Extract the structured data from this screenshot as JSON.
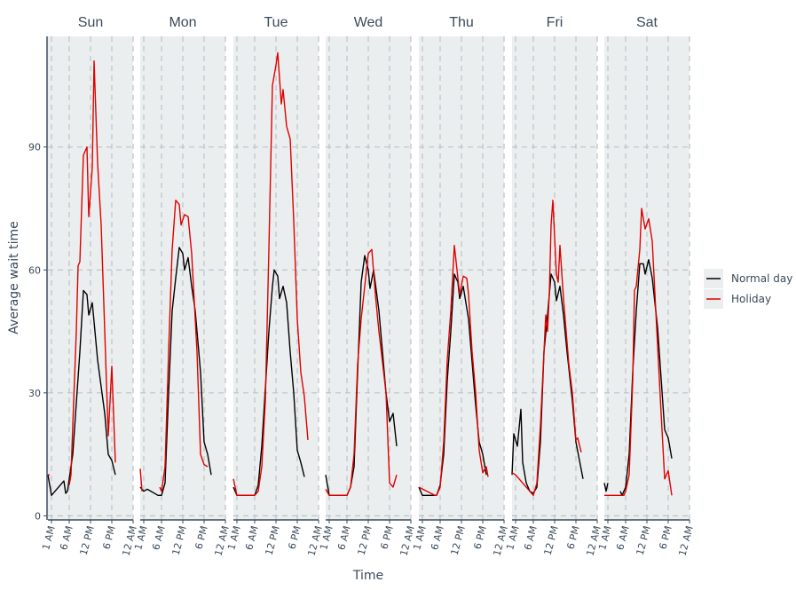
{
  "chart_data": {
    "type": "line",
    "layout": "faceted",
    "xlabel": "Time",
    "ylabel": "Average wait time",
    "x_ticks": [
      {
        "hour": 1,
        "label": "1 AM"
      },
      {
        "hour": 6,
        "label": "6 AM"
      },
      {
        "hour": 12,
        "label": "12 PM"
      },
      {
        "hour": 18,
        "label": "6 PM"
      },
      {
        "hour": 24,
        "label": "12 AM"
      }
    ],
    "xlim": [
      0,
      24
    ],
    "y_ticks": [
      0,
      30,
      60,
      90
    ],
    "ylim": [
      -1,
      117
    ],
    "grid": true,
    "legend_position": "right",
    "legend": [
      {
        "name": "Normal day",
        "color": "#000000"
      },
      {
        "name": "Holiday",
        "color": "#e00000"
      }
    ],
    "facets": [
      {
        "label": "Sun",
        "normal": [
          [
            0,
            10
          ],
          [
            1,
            5
          ],
          [
            4.5,
            8.5
          ],
          [
            5,
            5.5
          ],
          [
            5.5,
            6
          ],
          [
            7,
            15
          ],
          [
            9,
            40
          ],
          [
            10,
            55
          ],
          [
            11,
            54
          ],
          [
            11.5,
            49
          ],
          [
            12.5,
            52
          ],
          [
            14,
            38
          ],
          [
            16,
            25
          ],
          [
            17,
            15
          ],
          [
            18,
            13.5
          ],
          [
            19,
            10
          ]
        ],
        "holiday": [
          [
            0,
            10
          ],
          [
            0.5,
            10
          ],
          [
            null,
            null
          ],
          [
            6,
            7.5
          ],
          [
            6.5,
            10
          ],
          [
            7,
            22
          ],
          [
            8,
            45
          ],
          [
            8.5,
            61
          ],
          [
            9,
            62
          ],
          [
            10,
            88
          ],
          [
            11,
            90
          ],
          [
            11.5,
            73
          ],
          [
            12.5,
            85
          ],
          [
            13,
            111
          ],
          [
            14,
            86
          ],
          [
            15,
            71
          ],
          [
            17,
            19.5
          ],
          [
            18,
            36.5
          ],
          [
            19,
            13
          ]
        ]
      },
      {
        "label": "Mon",
        "normal": [
          [
            0,
            7
          ],
          [
            1,
            6
          ],
          [
            2,
            6.5
          ],
          [
            5,
            5
          ],
          [
            6,
            5
          ],
          [
            7,
            8
          ],
          [
            8,
            30
          ],
          [
            9,
            50
          ],
          [
            10,
            58
          ],
          [
            11,
            65.5
          ],
          [
            12,
            64
          ],
          [
            12.5,
            60
          ],
          [
            13.5,
            63
          ],
          [
            14.5,
            56
          ],
          [
            15.5,
            50
          ],
          [
            17,
            35
          ],
          [
            18,
            18
          ],
          [
            19,
            15
          ],
          [
            20,
            10
          ]
        ],
        "holiday": [
          [
            0,
            11.5
          ],
          [
            0.5,
            6
          ],
          [
            null,
            null
          ],
          [
            5.5,
            7
          ],
          [
            6,
            6
          ],
          [
            7,
            12
          ],
          [
            8,
            40
          ],
          [
            9,
            65
          ],
          [
            10,
            77
          ],
          [
            11,
            76
          ],
          [
            11.5,
            71
          ],
          [
            12.5,
            73.5
          ],
          [
            13.5,
            73
          ],
          [
            14.5,
            64
          ],
          [
            16,
            40
          ],
          [
            17,
            15
          ],
          [
            18,
            12.5
          ],
          [
            19,
            12
          ]
        ]
      },
      {
        "label": "Tue",
        "normal": [
          [
            0,
            7
          ],
          [
            1,
            5
          ],
          [
            6,
            5
          ],
          [
            7,
            7.5
          ],
          [
            8,
            17
          ],
          [
            10,
            45
          ],
          [
            11,
            56
          ],
          [
            11.5,
            60
          ],
          [
            12.5,
            58.5
          ],
          [
            13,
            53
          ],
          [
            14,
            56
          ],
          [
            15,
            52
          ],
          [
            16,
            40
          ],
          [
            17,
            30
          ],
          [
            18,
            16
          ],
          [
            19,
            13
          ],
          [
            20,
            9.5
          ]
        ],
        "holiday": [
          [
            0,
            9
          ],
          [
            1,
            5
          ],
          [
            6,
            5
          ],
          [
            7,
            6
          ],
          [
            8,
            12
          ],
          [
            9,
            28
          ],
          [
            10,
            65
          ],
          [
            10.5,
            85
          ],
          [
            11,
            105
          ],
          [
            12,
            110
          ],
          [
            12.5,
            113
          ],
          [
            13.5,
            100.5
          ],
          [
            14,
            104
          ],
          [
            15,
            95
          ],
          [
            16,
            92
          ],
          [
            17,
            72
          ],
          [
            18,
            48
          ],
          [
            19,
            35
          ],
          [
            20,
            29
          ],
          [
            21,
            18.5
          ]
        ]
      },
      {
        "label": "Wed",
        "normal": [
          [
            0,
            10
          ],
          [
            1,
            5
          ],
          [
            6,
            5
          ],
          [
            7,
            7
          ],
          [
            8,
            12
          ],
          [
            9,
            35
          ],
          [
            10,
            57
          ],
          [
            11,
            63.5
          ],
          [
            12,
            60
          ],
          [
            12.5,
            55.5
          ],
          [
            13.5,
            60
          ],
          [
            15,
            50
          ],
          [
            17,
            30
          ],
          [
            18,
            23
          ],
          [
            19,
            25
          ],
          [
            20,
            17
          ]
        ],
        "holiday": [
          [
            0,
            6.5
          ],
          [
            1,
            5
          ],
          [
            6,
            5
          ],
          [
            7,
            7
          ],
          [
            8,
            15
          ],
          [
            9,
            37
          ],
          [
            10,
            48
          ],
          [
            11,
            56
          ],
          [
            12,
            64
          ],
          [
            13,
            65
          ],
          [
            14,
            54
          ],
          [
            15,
            45
          ],
          [
            17,
            30
          ],
          [
            18,
            8
          ],
          [
            19,
            7
          ],
          [
            20,
            10
          ]
        ]
      },
      {
        "label": "Thu",
        "normal": [
          [
            0,
            7
          ],
          [
            1,
            5
          ],
          [
            5,
            5
          ],
          [
            6,
            7.5
          ],
          [
            7,
            15
          ],
          [
            8,
            33
          ],
          [
            9,
            45
          ],
          [
            10,
            59
          ],
          [
            11,
            57
          ],
          [
            11.5,
            53
          ],
          [
            12.5,
            56
          ],
          [
            14,
            48
          ],
          [
            16,
            27
          ],
          [
            17,
            18
          ],
          [
            18,
            15
          ],
          [
            19,
            10
          ]
        ],
        "holiday": [
          [
            0,
            7
          ],
          [
            4.5,
            5
          ],
          [
            5,
            5
          ],
          [
            6,
            7
          ],
          [
            7,
            18
          ],
          [
            8,
            38
          ],
          [
            9,
            50
          ],
          [
            10,
            66
          ],
          [
            11,
            58
          ],
          [
            11.5,
            54
          ],
          [
            12.5,
            58.5
          ],
          [
            13.5,
            58
          ],
          [
            14,
            54
          ],
          [
            15,
            40
          ],
          [
            16,
            30
          ],
          [
            17,
            16
          ],
          [
            18,
            10.5
          ],
          [
            19,
            12
          ],
          [
            19.5,
            9.5
          ]
        ]
      },
      {
        "label": "Fri",
        "normal": [
          [
            0,
            10
          ],
          [
            0.5,
            20
          ],
          [
            1.5,
            17
          ],
          [
            2.5,
            26
          ],
          [
            3,
            13
          ],
          [
            4,
            8
          ],
          [
            5,
            6
          ],
          [
            6,
            5.5
          ],
          [
            7,
            7
          ],
          [
            8,
            18
          ],
          [
            9,
            40
          ],
          [
            10,
            49
          ],
          [
            11,
            59
          ],
          [
            12,
            57
          ],
          [
            12.5,
            52.5
          ],
          [
            13.5,
            56
          ],
          [
            14.5,
            49
          ],
          [
            15.5,
            40
          ],
          [
            17,
            28
          ],
          [
            18,
            18
          ],
          [
            19,
            13.5
          ],
          [
            20,
            9
          ]
        ],
        "holiday": [
          [
            0,
            10.5
          ],
          [
            1,
            10
          ],
          [
            4,
            7
          ],
          [
            6,
            5
          ],
          [
            7,
            8
          ],
          [
            8,
            22
          ],
          [
            9,
            40
          ],
          [
            9.5,
            49
          ],
          [
            10,
            45
          ],
          [
            10.5,
            54
          ],
          [
            11,
            71
          ],
          [
            11.5,
            77
          ],
          [
            12.5,
            59
          ],
          [
            13,
            57
          ],
          [
            13.5,
            66
          ],
          [
            14.5,
            53
          ],
          [
            16,
            37
          ],
          [
            17,
            30
          ],
          [
            18,
            18.5
          ],
          [
            18.5,
            19
          ],
          [
            19.5,
            15.5
          ]
        ]
      },
      {
        "label": "Sat",
        "normal": [
          [
            0,
            8
          ],
          [
            0.5,
            6
          ],
          [
            1,
            8
          ],
          [
            null,
            null
          ],
          [
            4.5,
            6
          ],
          [
            5,
            5
          ],
          [
            6,
            7
          ],
          [
            7,
            15
          ],
          [
            8,
            35
          ],
          [
            9,
            50
          ],
          [
            10,
            61.5
          ],
          [
            11,
            61.5
          ],
          [
            11.5,
            59
          ],
          [
            12.5,
            62.5
          ],
          [
            13.5,
            58
          ],
          [
            15,
            46
          ],
          [
            17,
            21
          ],
          [
            18,
            19
          ],
          [
            19,
            14
          ]
        ],
        "holiday": [
          [
            0,
            5
          ],
          [
            5.5,
            5
          ],
          [
            6,
            6
          ],
          [
            7,
            10
          ],
          [
            8,
            33
          ],
          [
            8.5,
            55
          ],
          [
            9,
            56
          ],
          [
            10,
            65
          ],
          [
            10.5,
            75
          ],
          [
            11.5,
            70
          ],
          [
            12.5,
            72.5
          ],
          [
            13.5,
            67
          ],
          [
            14.5,
            50
          ],
          [
            16,
            25
          ],
          [
            17,
            9
          ],
          [
            18,
            11
          ],
          [
            19,
            5
          ]
        ]
      }
    ]
  }
}
